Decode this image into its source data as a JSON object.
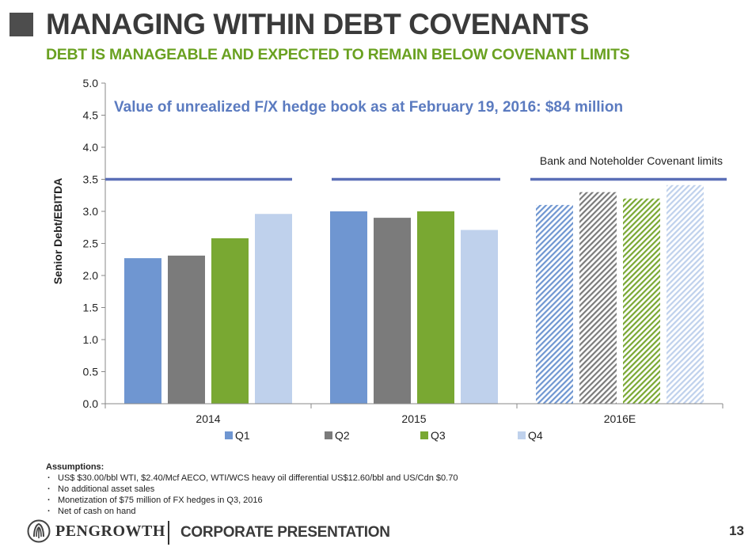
{
  "header": {
    "title": "MANAGING WITHIN DEBT COVENANTS",
    "subtitle": "DEBT IS MANAGEABLE AND EXPECTED TO REMAIN BELOW COVENANT LIMITS"
  },
  "chart_data": {
    "type": "bar",
    "annotation": "Value of unrealized F/X hedge book as at February 19, 2016: $84 million",
    "covenant_label": "Bank and Noteholder Covenant limits",
    "covenant_value": 3.5,
    "ylabel": "Senior Debt/EBITDA",
    "xlabel": "",
    "ylim": [
      0,
      5
    ],
    "y_ticks": [
      "0.0",
      "0.5",
      "1.0",
      "1.5",
      "2.0",
      "2.5",
      "3.0",
      "3.5",
      "4.0",
      "4.5",
      "5.0"
    ],
    "categories": [
      "2014",
      "2015",
      "2016E"
    ],
    "estimated_categories": [
      "2016E"
    ],
    "series": [
      {
        "name": "Q1",
        "color": "#6f96d1",
        "values": [
          2.27,
          3.0,
          3.1
        ]
      },
      {
        "name": "Q2",
        "color": "#7b7b7b",
        "values": [
          2.31,
          2.9,
          3.3
        ]
      },
      {
        "name": "Q3",
        "color": "#79a832",
        "values": [
          2.58,
          3.0,
          3.2
        ]
      },
      {
        "name": "Q4",
        "color": "#bfd1ec",
        "values": [
          2.96,
          2.71,
          3.41
        ]
      }
    ],
    "covenant_color": "#5b6fb7",
    "annotation_color": "#5b7bc0",
    "legend_position": "bottom"
  },
  "assumptions": {
    "heading": "Assumptions:",
    "items": [
      "US$ $30.00/bbl WTI, $2.40/Mcf AECO, WTI/WCS heavy oil differential US$12.60/bbl and US/Cdn $0.70",
      "No additional asset sales",
      "Monetization of $75 million of FX hedges in Q3, 2016",
      "Net of cash on hand"
    ]
  },
  "footer": {
    "company": "PENGROWTH",
    "section": "CORPORATE PRESENTATION",
    "page": "13"
  }
}
